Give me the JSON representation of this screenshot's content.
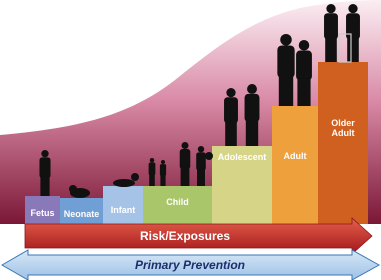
{
  "stages": [
    {
      "label": "Fetus"
    },
    {
      "label": "Neonate"
    },
    {
      "label": "Infant"
    },
    {
      "label": "Child"
    },
    {
      "label": "Adolescent"
    },
    {
      "label": "Adult"
    },
    {
      "label": "Older Adult"
    }
  ],
  "risk_label": "Risk/Exposures",
  "prevention_label": "Primary Prevention"
}
